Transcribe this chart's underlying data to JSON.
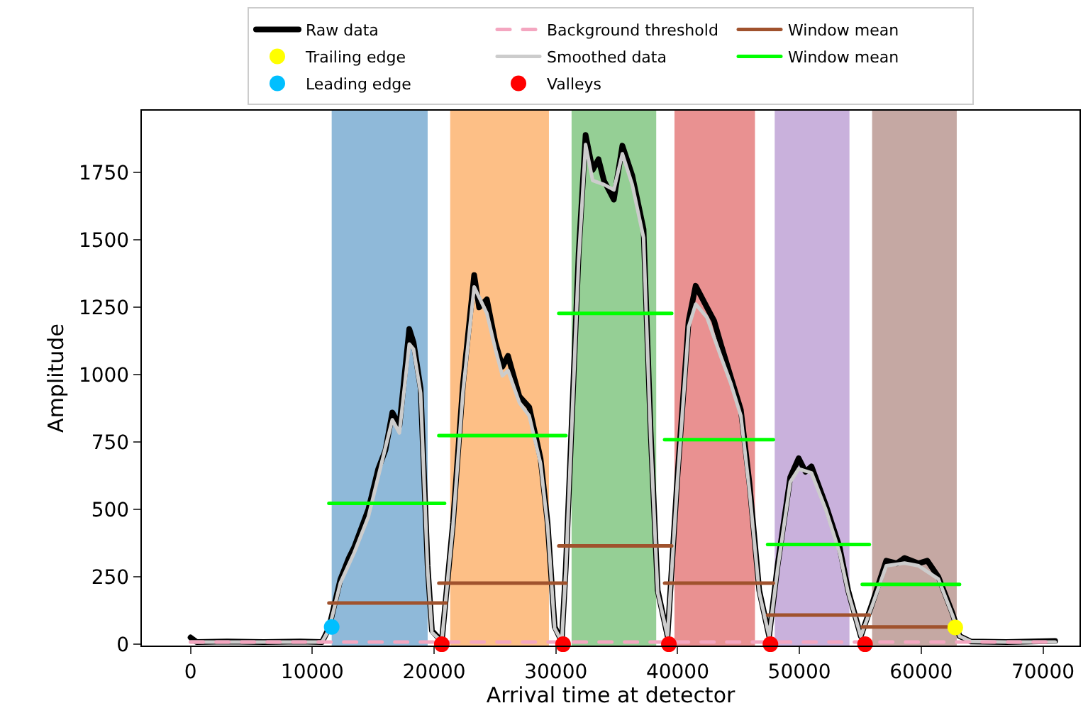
{
  "chart_data": {
    "type": "line",
    "xlabel": "Arrival time at detector",
    "ylabel": "Amplitude",
    "xlim": [
      -4000,
      73000
    ],
    "ylim": [
      -5,
      1980
    ],
    "xticks": [
      0,
      10000,
      20000,
      30000,
      40000,
      50000,
      60000,
      70000
    ],
    "yticks": [
      0,
      250,
      500,
      750,
      1000,
      1250,
      1500,
      1750
    ],
    "grid": false,
    "legend": "top",
    "bands": [
      {
        "axis": "x",
        "from": 11590,
        "to": 19470,
        "color": "#8fb9d9"
      },
      {
        "axis": "x",
        "from": 21320,
        "to": 29430,
        "color": "#fdbf86"
      },
      {
        "axis": "x",
        "from": 31290,
        "to": 38240,
        "color": "#95cf95"
      },
      {
        "axis": "x",
        "from": 39740,
        "to": 46350,
        "color": "#e99191"
      },
      {
        "axis": "x",
        "from": 47970,
        "to": 54110,
        "color": "#c9b1dc"
      },
      {
        "axis": "x",
        "from": 55970,
        "to": 62920,
        "color": "#c5a8a3"
      }
    ],
    "series": [
      {
        "name": "Raw data",
        "color": "#000000",
        "marker": "none",
        "line_style": "solid",
        "x": [
          0,
          500,
          3000,
          6000,
          9000,
          10800,
          11360,
          12300,
          13000,
          13440,
          14600,
          15410,
          16000,
          16570,
          17150,
          17960,
          18310,
          18890,
          19470,
          19820,
          20630,
          21550,
          22360,
          23290,
          23700,
          24330,
          25030,
          25610,
          26070,
          27000,
          27810,
          28740,
          29320,
          29900,
          30480,
          30820,
          31870,
          32440,
          33020,
          33500,
          33950,
          34760,
          35460,
          36270,
          37200,
          37780,
          38360,
          39170,
          39980,
          40900,
          41480,
          42410,
          43000,
          43570,
          44380,
          45190,
          45890,
          46700,
          47510,
          48200,
          49250,
          49940,
          50500,
          50990,
          52140,
          53300,
          54000,
          55040,
          55970,
          57130,
          58000,
          58630,
          59790,
          60500,
          61410,
          62570,
          63150,
          64080,
          67000,
          71000
        ],
        "values": [
          25,
          8,
          10,
          8,
          10,
          8,
          60,
          240,
          320,
          360,
          500,
          650,
          720,
          860,
          810,
          1170,
          1120,
          950,
          290,
          50,
          10,
          450,
          960,
          1370,
          1250,
          1280,
          1120,
          1030,
          1070,
          920,
          880,
          690,
          450,
          65,
          10,
          290,
          1450,
          1890,
          1760,
          1800,
          1720,
          1650,
          1850,
          1740,
          1540,
          790,
          200,
          30,
          620,
          1200,
          1330,
          1250,
          1200,
          1110,
          990,
          870,
          600,
          200,
          30,
          290,
          620,
          690,
          640,
          660,
          520,
          360,
          200,
          30,
          150,
          310,
          300,
          320,
          300,
          310,
          250,
          115,
          30,
          10,
          8,
          12
        ]
      },
      {
        "name": "Smoothed data",
        "color": "#cccccc",
        "marker": "none",
        "line_style": "solid",
        "x": [
          0,
          3000,
          6000,
          9000,
          10800,
          11360,
          12300,
          13440,
          14600,
          15410,
          16570,
          17150,
          17960,
          18310,
          18890,
          19470,
          19820,
          20630,
          21550,
          22360,
          23290,
          24330,
          25030,
          25610,
          26070,
          27000,
          27810,
          28740,
          29320,
          29900,
          30480,
          30820,
          31870,
          32440,
          33020,
          33950,
          34760,
          35460,
          36270,
          37200,
          37780,
          38360,
          39170,
          39980,
          40900,
          41480,
          42410,
          43570,
          44380,
          45190,
          45890,
          46700,
          47510,
          48200,
          49250,
          49940,
          50990,
          52140,
          53300,
          54000,
          55040,
          55970,
          57130,
          58630,
          59790,
          61410,
          62570,
          63150,
          64080,
          67000,
          71000
        ],
        "values": [
          8,
          8,
          8,
          8,
          8,
          54,
          227,
          340,
          473,
          621,
          833,
          784,
          1114,
          1095,
          932,
          276,
          44,
          10,
          439,
          932,
          1326,
          1228,
          1095,
          996,
          1016,
          897,
          848,
          671,
          439,
          59,
          10,
          276,
          1425,
          1854,
          1721,
          1706,
          1686,
          1820,
          1706,
          1509,
          769,
          192,
          30,
          602,
          1178,
          1262,
          1213,
          1065,
          966,
          848,
          572,
          192,
          30,
          276,
          602,
          651,
          636,
          503,
          340,
          192,
          30,
          143,
          291,
          301,
          291,
          242,
          108,
          30,
          10,
          8,
          8
        ]
      },
      {
        "name": "Background threshold",
        "color": "#f4a6c0",
        "marker": "none",
        "line_style": "dashed",
        "x": [
          0,
          71000
        ],
        "values": [
          8,
          8
        ]
      },
      {
        "name": "Window mean",
        "color": "#00ff00",
        "marker": "none",
        "line_style": "solid",
        "x": [
          11360,
          20860,
          null,
          20390,
          30820,
          null,
          30240,
          39510,
          null,
          38930,
          47860,
          null,
          47390,
          55740,
          null,
          55160,
          63150
        ],
        "values": [
          523,
          523,
          null,
          774,
          774,
          null,
          1228,
          1228,
          null,
          759,
          759,
          null,
          370,
          370,
          null,
          222,
          222
        ]
      },
      {
        "name": "Window mean",
        "color": "#a0522d",
        "marker": "none",
        "line_style": "solid",
        "x": [
          11360,
          20980,
          null,
          20390,
          30820,
          null,
          30240,
          39510,
          null,
          38930,
          47860,
          null,
          47390,
          55740,
          null,
          55160,
          62100
        ],
        "values": [
          153,
          153,
          null,
          227,
          227,
          null,
          365,
          365,
          null,
          227,
          227,
          null,
          108,
          108,
          null,
          64,
          64
        ]
      },
      {
        "name": "Leading edge",
        "type": "scatter",
        "color": "#00bfff",
        "marker": "circle",
        "x": [
          11590
        ],
        "values": [
          64
        ]
      },
      {
        "name": "Trailing edge",
        "type": "scatter",
        "color": "#ffff00",
        "marker": "circle",
        "x": [
          62800
        ],
        "values": [
          62
        ]
      },
      {
        "name": "Valleys",
        "type": "scatter",
        "color": "#ff0000",
        "marker": "circle",
        "x": [
          20630,
          30590,
          39280,
          47620,
          55390
        ],
        "values": [
          0,
          0,
          0,
          0,
          0
        ]
      }
    ]
  }
}
